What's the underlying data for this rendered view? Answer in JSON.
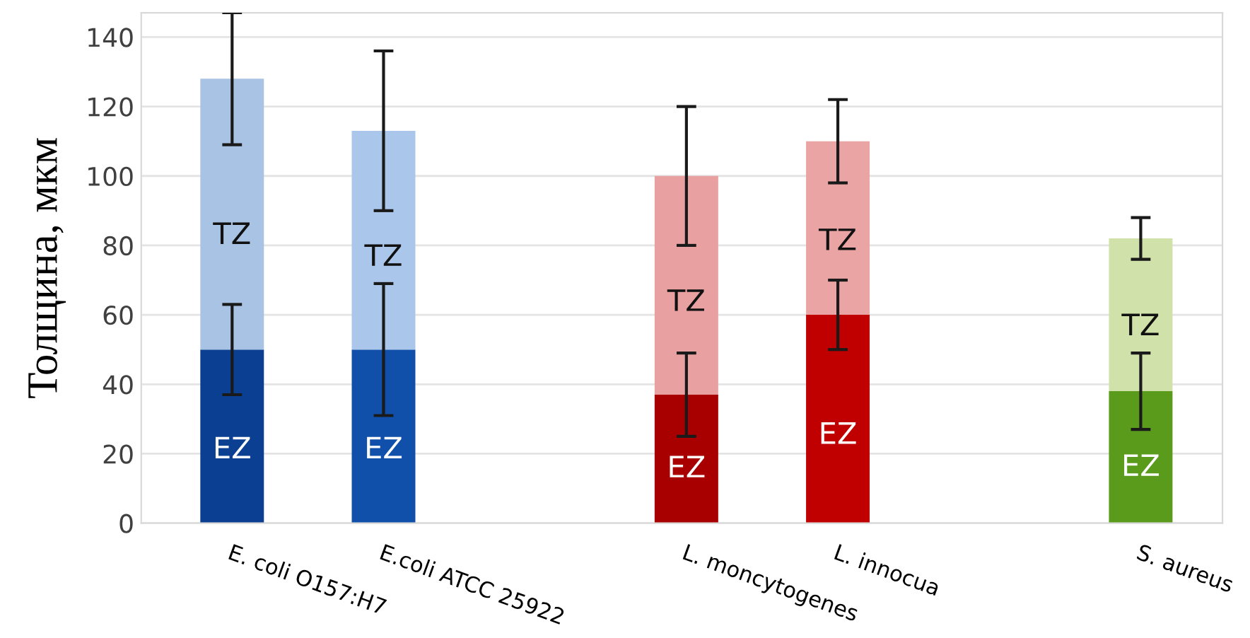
{
  "chart_data": {
    "type": "bar",
    "stacked": true,
    "ylabel": "Толщина, мкм",
    "categories": [
      "E. coli O157:H7",
      "E.coli ATCC 25922",
      null,
      "L. moncytogenes",
      "L. innocua",
      null,
      "S. aureus"
    ],
    "series": [
      {
        "name": "EZ",
        "colors": [
          "#0b3f92",
          "#1050aa",
          null,
          "#a80000",
          "#c00000",
          null,
          "#5b9b1c"
        ],
        "values": [
          50,
          50,
          null,
          37,
          60,
          null,
          38
        ],
        "errors": [
          13,
          19,
          null,
          12,
          10,
          null,
          11
        ]
      },
      {
        "name": "TZ",
        "colors": [
          "#a8c3e3",
          "#aac6ea",
          null,
          "#e8a0a0",
          "#eba4a4",
          null,
          "#d0e1aa"
        ],
        "values": [
          78,
          63,
          null,
          63,
          50,
          null,
          44
        ],
        "errors": [
          19,
          23,
          null,
          20,
          12,
          null,
          6
        ]
      }
    ],
    "ylim": [
      0,
      147
    ],
    "yticks": [
      0,
      20,
      40,
      60,
      80,
      100,
      120,
      140
    ],
    "grid": "y",
    "legend": false
  }
}
